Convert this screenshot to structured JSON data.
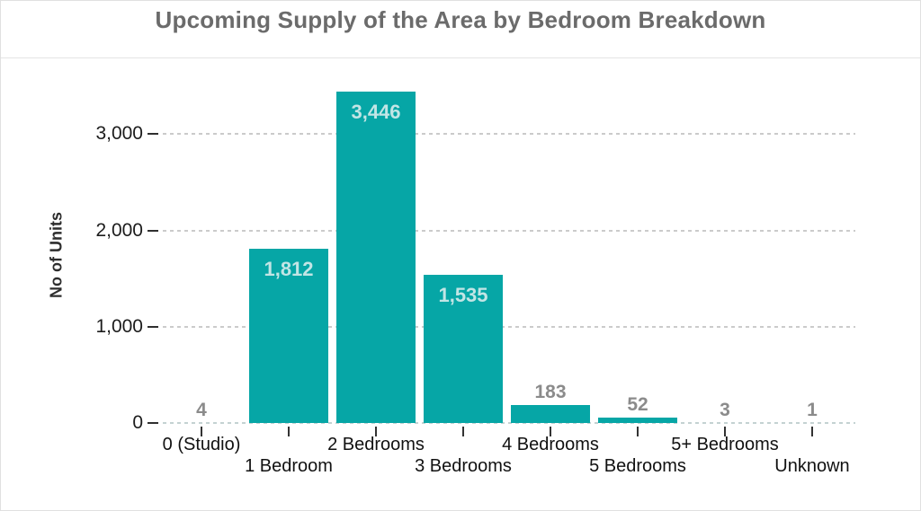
{
  "chart_data": {
    "type": "bar",
    "title": "Upcoming Supply of the Area by Bedroom Breakdown",
    "xlabel": "",
    "ylabel": "No of Units",
    "categories": [
      "0 (Studio)",
      "1 Bedroom",
      "2 Bedrooms",
      "3 Bedrooms",
      "4 Bedrooms",
      "5 Bedrooms",
      "5+ Bedrooms",
      "Unknown"
    ],
    "values": [
      4,
      1812,
      3446,
      1535,
      183,
      52,
      3,
      1
    ],
    "value_labels": [
      "4",
      "1,812",
      "3,446",
      "1,535",
      "183",
      "52",
      "3",
      "1"
    ],
    "ylim": [
      0,
      3500
    ],
    "yticks": [
      0,
      1000,
      2000,
      3000
    ],
    "ytick_labels": [
      "0",
      "1,000",
      "2,000",
      "3,000"
    ],
    "grid": "horizontal-dashed",
    "legend": "none",
    "colors": {
      "bar": "#06a6a6",
      "label_inside": "#c2e5e5",
      "label_outside": "#8b8b8b",
      "grid": "#cbcbcb",
      "axis_text": "#1c1c1c",
      "title_text": "#6b6b6b"
    }
  }
}
